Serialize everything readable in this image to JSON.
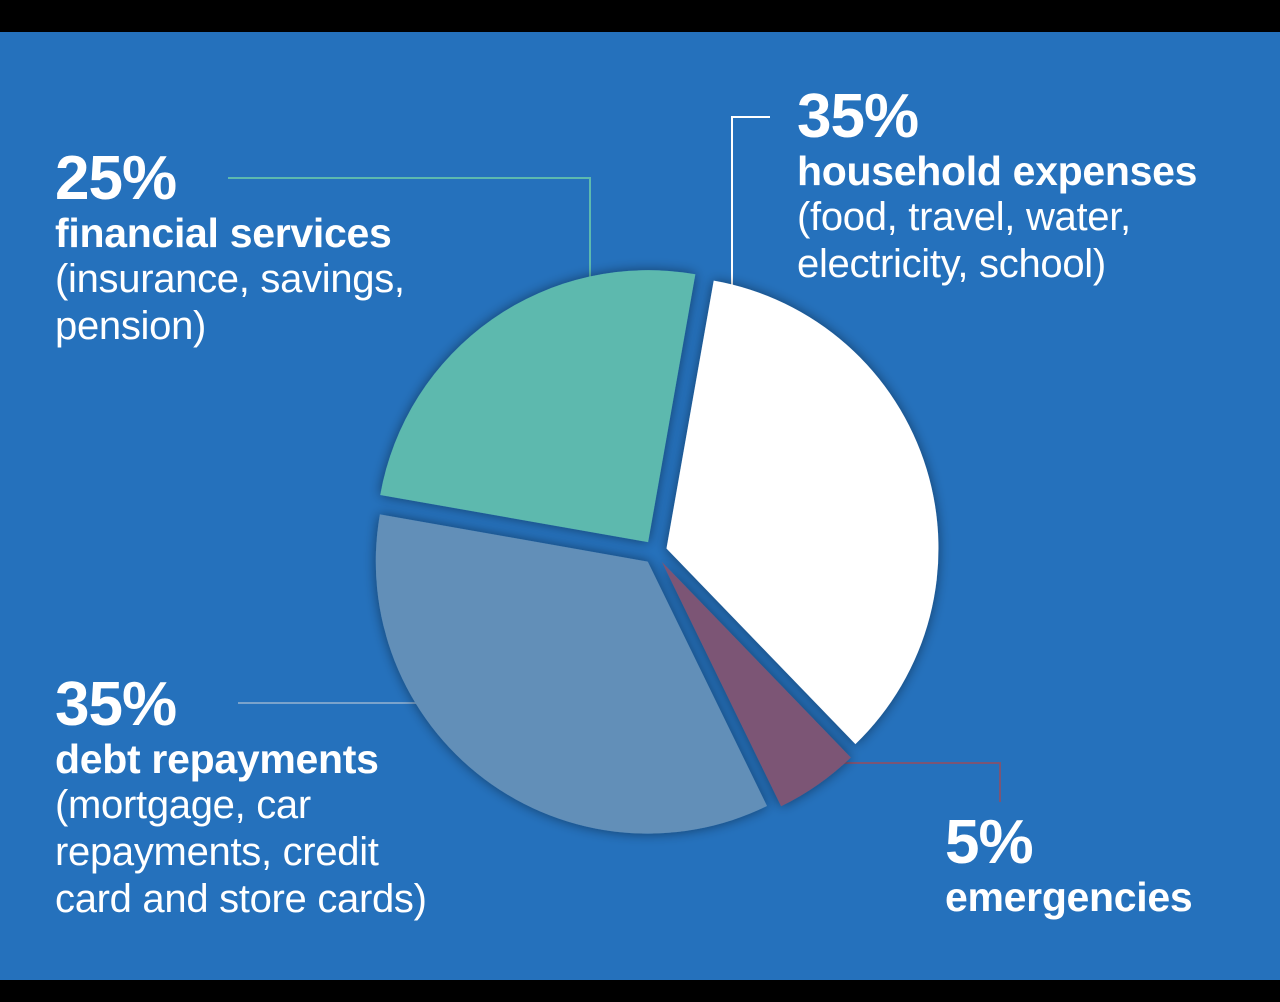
{
  "chart_data": {
    "type": "pie",
    "slices": [
      {
        "percent": 35,
        "label": "household expenses",
        "description": "(food, travel, water, electricity, school)",
        "color": "#ffffff"
      },
      {
        "percent": 5,
        "label": "emergencies",
        "description": "",
        "color": "#7b5575"
      },
      {
        "percent": 35,
        "label": "debt repayments",
        "description": "(mortgage, car repayments, credit card and store cards)",
        "color": "#628fb8"
      },
      {
        "percent": 25,
        "label": "financial services",
        "description": "(insurance, savings, pension)",
        "color": "#5db9ae"
      }
    ],
    "labels": {
      "household": {
        "pct": "35%",
        "cat": "household expenses",
        "desc1": "(food, travel, water,",
        "desc2": "electricity, school)"
      },
      "financial": {
        "pct": "25%",
        "cat": "financial services",
        "desc1": "(insurance, savings,",
        "desc2": "pension)"
      },
      "debt": {
        "pct": "35%",
        "cat": "debt repayments",
        "desc1": "(mortgage, car",
        "desc2": "repayments, credit",
        "desc3": "card and store cards)"
      },
      "emergencies": {
        "pct": "5%",
        "cat": "emergencies"
      }
    },
    "background_color": "#2571bc",
    "leader_colors": {
      "household": "#ffffff",
      "financial": "#5db9ae",
      "debt": "#7aa3cc",
      "emergencies": "#7b5575"
    }
  }
}
